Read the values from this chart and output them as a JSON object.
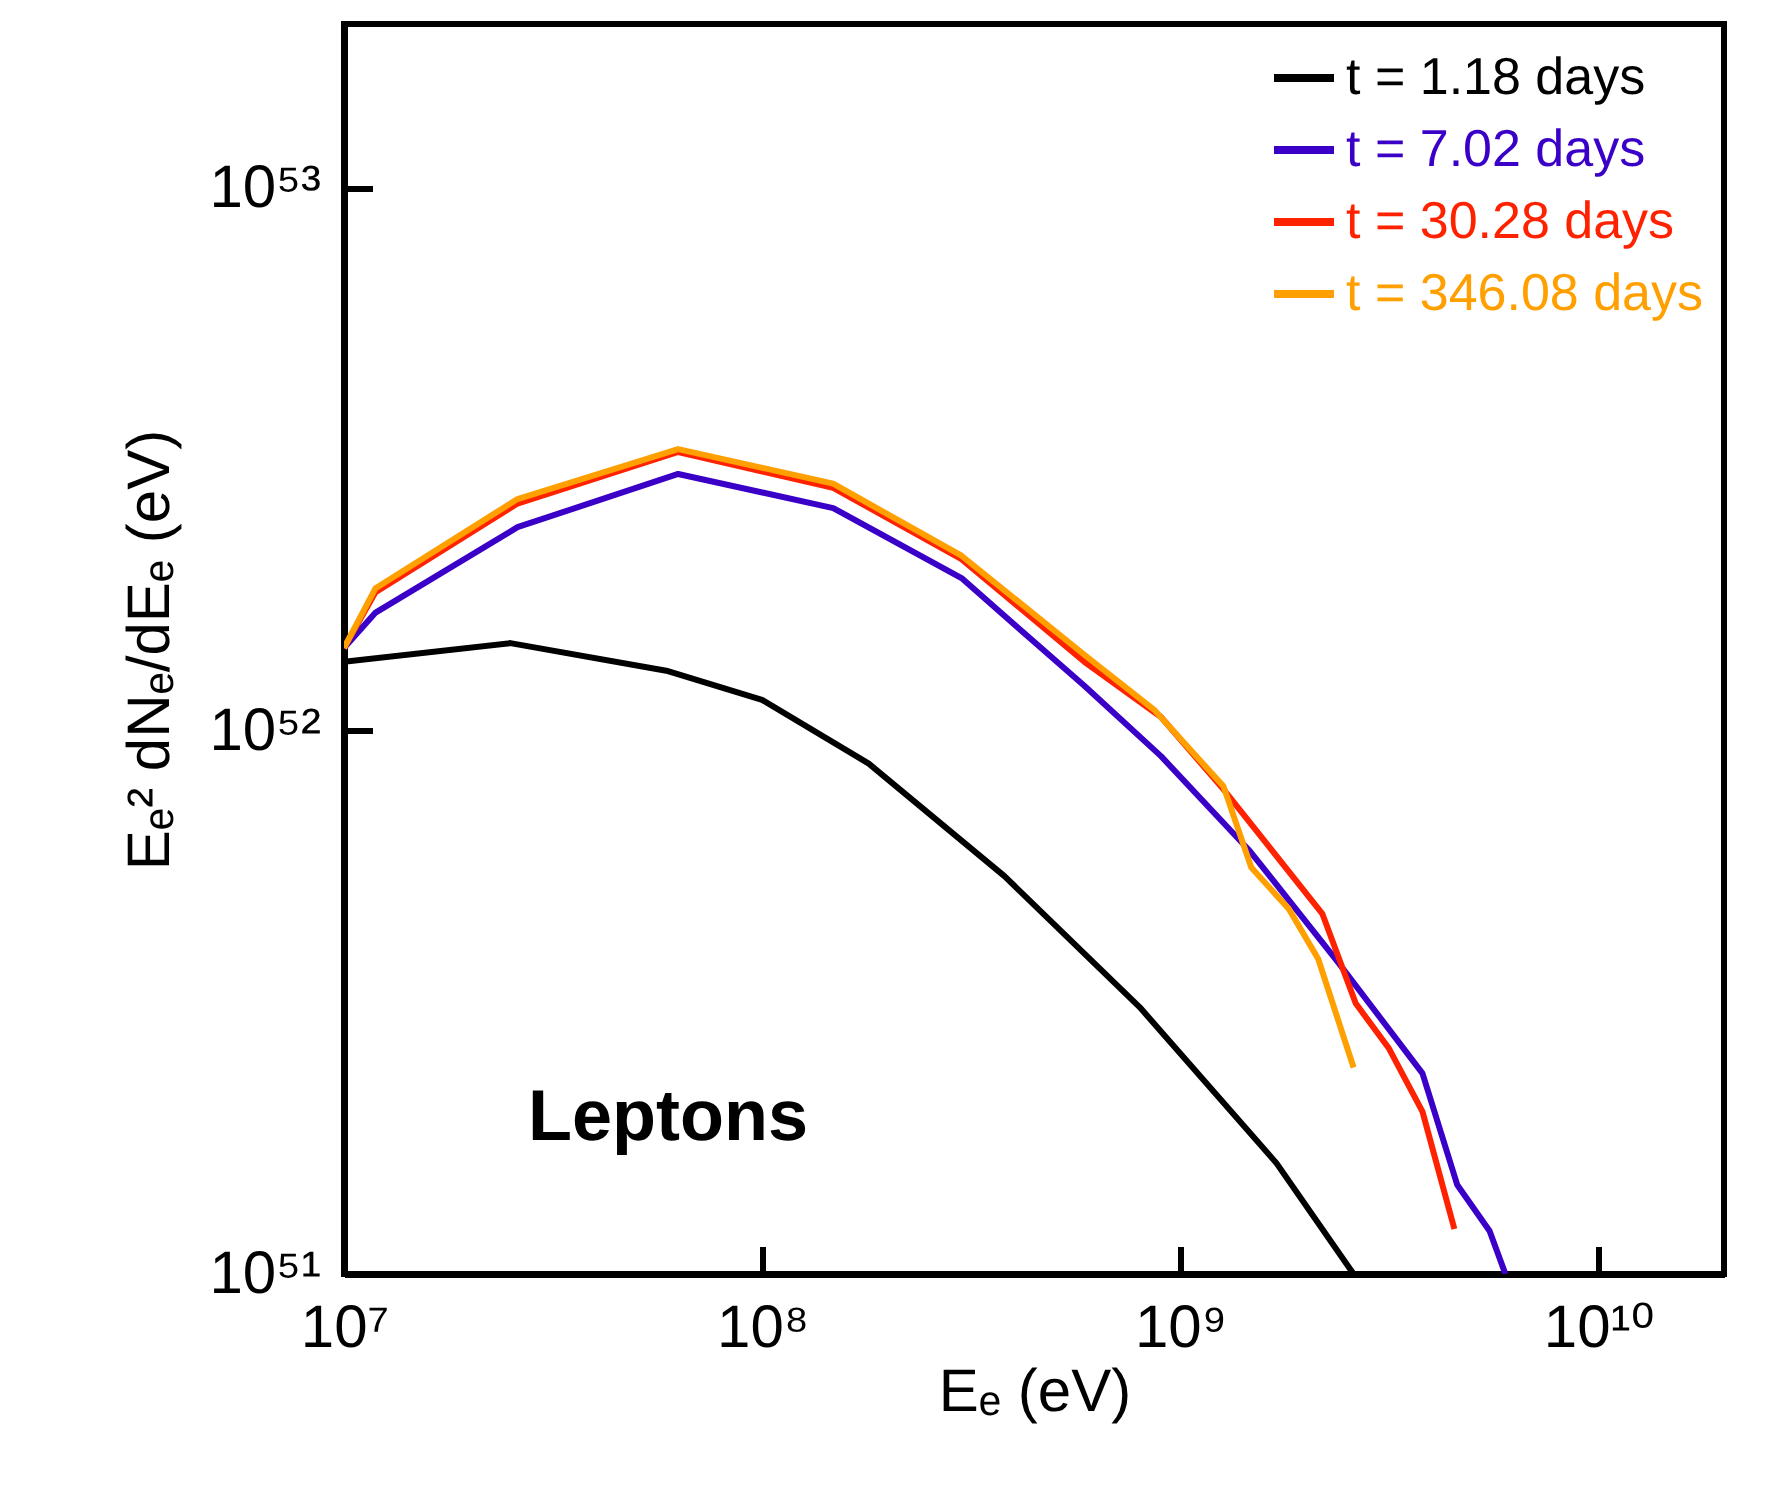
{
  "chart_data": {
    "type": "line",
    "xlabel": "Eₑ (eV)",
    "ylabel": "Eₑ² dNₑ/dEₑ (eV)",
    "log": "xy",
    "legend": "top right",
    "line_style": "solid",
    "marker": "none",
    "xlim": [
      10000000.0,
      20000000000.0
    ],
    "ylim": [
      1e+51,
      2e+53
    ],
    "xticks": [
      {
        "value": 10000000.0,
        "label": "10⁷"
      },
      {
        "value": 100000000.0,
        "label": "10⁸"
      },
      {
        "value": 1000000000.0,
        "label": "10⁹"
      },
      {
        "value": 10000000000.0,
        "label": "10¹⁰"
      }
    ],
    "yticks": [
      {
        "value": 1e+51,
        "label": "10⁵¹"
      },
      {
        "value": 1e+52,
        "label": "10⁵²"
      },
      {
        "value": 1e+53,
        "label": "10⁵³"
      }
    ],
    "annotations": [
      "Leptons"
    ],
    "series": [
      {
        "name": "t = 1.18 days",
        "color": "#000000",
        "x": [
          10000000.0,
          25000000.0,
          59000000.0,
          100000000.0,
          180000000.0,
          380000000.0,
          800000000.0,
          1700000000.0,
          2600000000.0
        ],
        "values": [
          1.34e+52,
          1.45e+52,
          1.29e+52,
          1.14e+52,
          8.7e+51,
          5.4e+51,
          3.1e+51,
          1.6e+51,
          1e+51
        ]
      },
      {
        "name": "t = 7.02 days",
        "color": "#3a00c8",
        "x": [
          10000000.0,
          11900000.0,
          26000000.0,
          63000000.0,
          148000000.0,
          300000000.0,
          590000000.0,
          900000000.0,
          1470000000.0,
          2380000000.0,
          3800000000.0,
          4600000000.0,
          5500000000.0,
          6000000000.0
        ],
        "values": [
          1.42e+52,
          1.65e+52,
          2.37e+52,
          2.97e+52,
          2.57e+52,
          1.91e+52,
          1.21e+52,
          8.98e+51,
          6e+51,
          3.76e+51,
          2.34e+51,
          1.46e+51,
          1.2e+51,
          1e+51
        ]
      },
      {
        "name": "t = 30.28 days",
        "color": "#ff2200",
        "x": [
          10000000.0,
          11900000.0,
          26000000.0,
          63000000.0,
          148000000.0,
          300000000.0,
          590000000.0,
          900000000.0,
          1270000000.0,
          1510000000.0,
          2190000000.0,
          2630000000.0,
          3160000000.0,
          3800000000.0,
          4530000000.0
        ],
        "values": [
          1.42e+52,
          1.8e+52,
          2.62e+52,
          3.26e+52,
          2.8e+52,
          2.07e+52,
          1.34e+52,
          1.06e+52,
          7.8e+51,
          6.6e+51,
          4.6e+51,
          3.15e+51,
          2.6e+51,
          1.99e+51,
          1.21e+51
        ]
      },
      {
        "name": "t = 346.08 days",
        "color": "#ffa000",
        "x": [
          10000000.0,
          11900000.0,
          26000000.0,
          63000000.0,
          148000000.0,
          300000000.0,
          590000000.0,
          870000000.0,
          1270000000.0,
          1480000000.0,
          1820000000.0,
          2140000000.0,
          2600000000.0
        ],
        "values": [
          1.42e+52,
          1.83e+52,
          2.67e+52,
          3.3e+52,
          2.85e+52,
          2.1e+52,
          1.38e+52,
          1.09e+52,
          7.9e+51,
          5.6e+51,
          4.7e+51,
          3.8e+51,
          2.4e+51
        ]
      }
    ]
  }
}
